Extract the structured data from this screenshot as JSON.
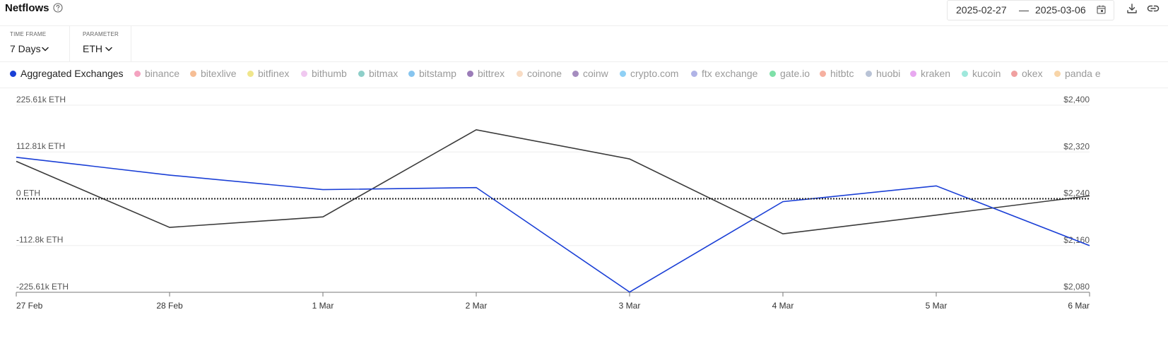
{
  "header": {
    "title": "Netflows",
    "date_start": "2025-02-27",
    "date_sep": "—",
    "date_end": "2025-03-06"
  },
  "filters": {
    "time_frame_label": "TIME FRAME",
    "time_frame_value": "7 Days",
    "parameter_label": "PARAMETER",
    "parameter_value": "ETH"
  },
  "legend": [
    {
      "label": "Aggregated Exchanges",
      "color": "#1a3fd6",
      "active": true
    },
    {
      "label": "binance",
      "color": "#f4a3c0",
      "active": false
    },
    {
      "label": "bitexlive",
      "color": "#f6be95",
      "active": false
    },
    {
      "label": "bitfinex",
      "color": "#f0e68c",
      "active": false
    },
    {
      "label": "bithumb",
      "color": "#f0c8f0",
      "active": false
    },
    {
      "label": "bitmax",
      "color": "#8ecfc9",
      "active": false
    },
    {
      "label": "bitstamp",
      "color": "#87c5ef",
      "active": false
    },
    {
      "label": "bittrex",
      "color": "#9b7cb8",
      "active": false
    },
    {
      "label": "coinone",
      "color": "#f8dcc4",
      "active": false
    },
    {
      "label": "coinw",
      "color": "#a58cbf",
      "active": false
    },
    {
      "label": "crypto.com",
      "color": "#8fd0f5",
      "active": false
    },
    {
      "label": "ftx exchange",
      "color": "#b0b3e6",
      "active": false
    },
    {
      "label": "gate.io",
      "color": "#7ee0a8",
      "active": false
    },
    {
      "label": "hitbtc",
      "color": "#f6b0a0",
      "active": false
    },
    {
      "label": "huobi",
      "color": "#b9c3d6",
      "active": false
    },
    {
      "label": "kraken",
      "color": "#e8a8f0",
      "active": false
    },
    {
      "label": "kucoin",
      "color": "#9fe8dc",
      "active": false
    },
    {
      "label": "okex",
      "color": "#f0a0a0",
      "active": false
    },
    {
      "label": "panda e",
      "color": "#f8d5a8",
      "active": false
    }
  ],
  "chart_data": {
    "type": "line",
    "categories": [
      "27 Feb",
      "28 Feb",
      "1 Mar",
      "2 Mar",
      "3 Mar",
      "4 Mar",
      "5 Mar",
      "6 Mar"
    ],
    "y_left": {
      "unit": "ETH",
      "ticks": [
        "225.61k ETH",
        "112.81k ETH",
        "0 ETH",
        "-112.8k ETH",
        "-225.61k ETH"
      ],
      "tick_values": [
        225610,
        112810,
        0,
        -112800,
        -225610
      ],
      "range": [
        -225610,
        225610
      ]
    },
    "y_right": {
      "unit": "USD",
      "ticks": [
        "$2,400",
        "$2,320",
        "$2,240",
        "$2,160",
        "$2,080"
      ],
      "tick_values": [
        2400,
        2320,
        2240,
        2160,
        2080
      ],
      "range": [
        2080,
        2400
      ]
    },
    "series": [
      {
        "name": "Aggregated Exchanges",
        "axis": "left",
        "color": "#1a3fd6",
        "values": [
          100000,
          57000,
          22000,
          27000,
          -225000,
          -7000,
          31000,
          -113000
        ]
      },
      {
        "axis": "right",
        "color": "#3a3a3a",
        "values": [
          2304,
          2191,
          2209,
          2358,
          2308,
          2180,
          2212,
          2245
        ]
      }
    ],
    "zero_line": "dotted",
    "grid": true
  }
}
